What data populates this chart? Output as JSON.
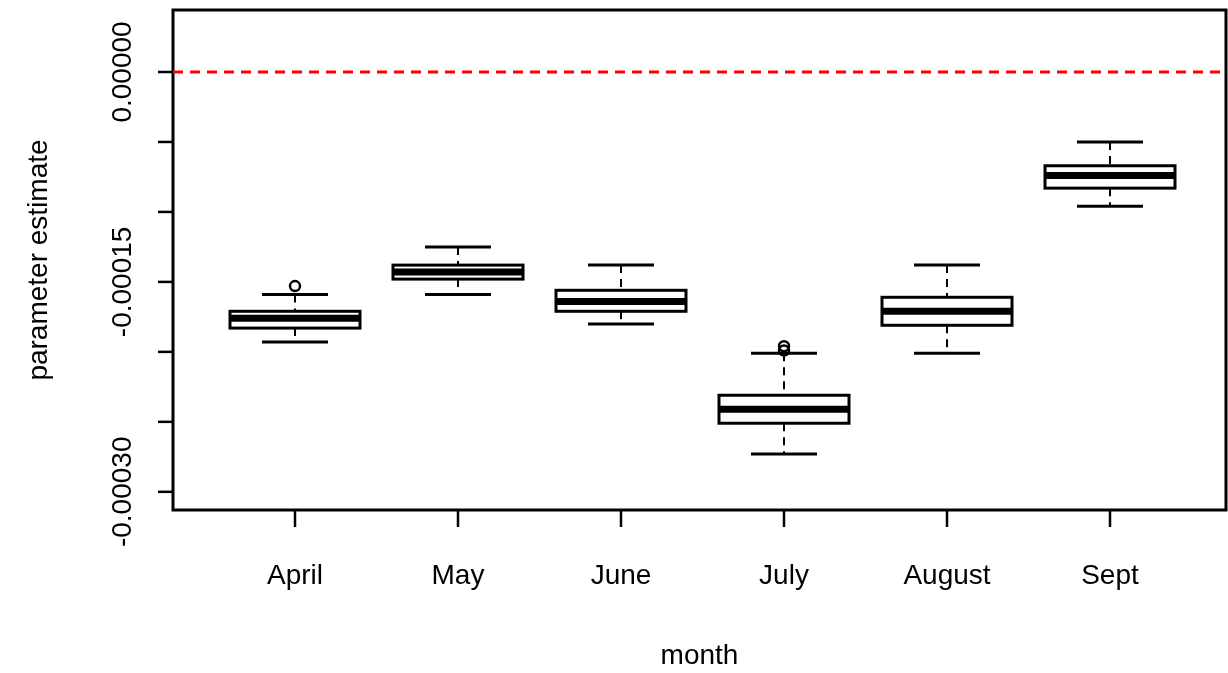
{
  "chart_data": {
    "type": "box",
    "xlabel": "month",
    "ylabel": "parameter estimate",
    "categories": [
      "April",
      "May",
      "June",
      "July",
      "August",
      "Sept"
    ],
    "boxes": [
      {
        "low": -0.000193,
        "q1": -0.000183,
        "median": -0.000176,
        "q3": -0.000171,
        "high": -0.000159,
        "outliers": [
          -0.000153
        ]
      },
      {
        "low": -0.000159,
        "q1": -0.000148,
        "median": -0.000143,
        "q3": -0.000138,
        "high": -0.000125
      },
      {
        "low": -0.00018,
        "q1": -0.000171,
        "median": -0.000164,
        "q3": -0.000156,
        "high": -0.000138
      },
      {
        "low": -0.000273,
        "q1": -0.000251,
        "median": -0.000241,
        "q3": -0.000231,
        "high": -0.000201,
        "outliers": [
          -0.000196,
          -0.000199
        ]
      },
      {
        "low": -0.000201,
        "q1": -0.000181,
        "median": -0.000171,
        "q3": -0.000161,
        "high": -0.000138
      },
      {
        "low": -9.6e-05,
        "q1": -8.3e-05,
        "median": -7.4e-05,
        "q3": -6.7e-05,
        "high": -5e-05
      }
    ],
    "color": "#000000",
    "ylim": [
      -0.000313,
      4.43e-05
    ],
    "yticks": [
      {
        "value": 0,
        "label": "0.00000"
      },
      {
        "value": -5e-05,
        "label": null
      },
      {
        "value": -0.0001,
        "label": null
      },
      {
        "value": -0.00015,
        "label": "-0.00015"
      },
      {
        "value": -0.0002,
        "label": null
      },
      {
        "value": -0.00025,
        "label": null
      },
      {
        "value": -0.0003,
        "label": "-0.00030"
      }
    ],
    "ref_lines": [
      {
        "axis": "y",
        "value": 0,
        "color": "#ff0000",
        "line_style": "dashed"
      }
    ],
    "grid": false
  }
}
